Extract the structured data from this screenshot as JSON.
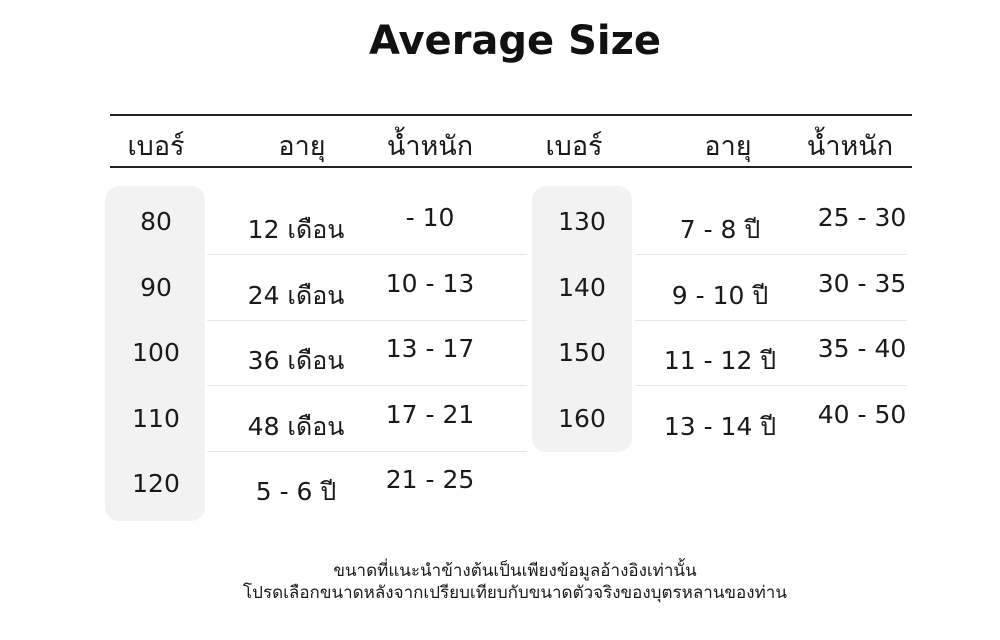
{
  "title": "Average Size",
  "headers": [
    "เบอร์",
    "อายุ",
    "น้ำหนัก",
    "เบอร์",
    "อายุ",
    "น้ำหนัก"
  ],
  "left_table": [
    {
      "size": "80",
      "age": "12 เดือน",
      "weight": "- 10"
    },
    {
      "size": "90",
      "age": "24 เดือน",
      "weight": "10 - 13"
    },
    {
      "size": "100",
      "age": "36 เดือน",
      "weight": "13 - 17"
    },
    {
      "size": "110",
      "age": "48 เดือน",
      "weight": "17 - 21"
    },
    {
      "size": "120",
      "age": "5 - 6 ปี",
      "weight": "21 - 25"
    }
  ],
  "right_table": [
    {
      "size": "130",
      "age": "7 - 8 ปี",
      "weight": "25 - 30"
    },
    {
      "size": "140",
      "age": "9 - 10 ปี",
      "weight": "30 - 35"
    },
    {
      "size": "150",
      "age": "11 - 12 ปี",
      "weight": "35 - 40"
    },
    {
      "size": "160",
      "age": "13 - 14 ปี",
      "weight": "40 - 50"
    }
  ],
  "note": {
    "line1": "ขนาดที่แนะนำข้างต้นเป็นเพียงข้อมูลอ้างอิงเท่านั้น",
    "line2": "โปรดเลือกขนาดหลังจากเปรียบเทียบกับขนาดตัวจริงของบุตรหลานของท่าน"
  },
  "colors": {
    "pill": "#f2f2f2",
    "text": "#1a1a1a",
    "rule": "#222222"
  }
}
